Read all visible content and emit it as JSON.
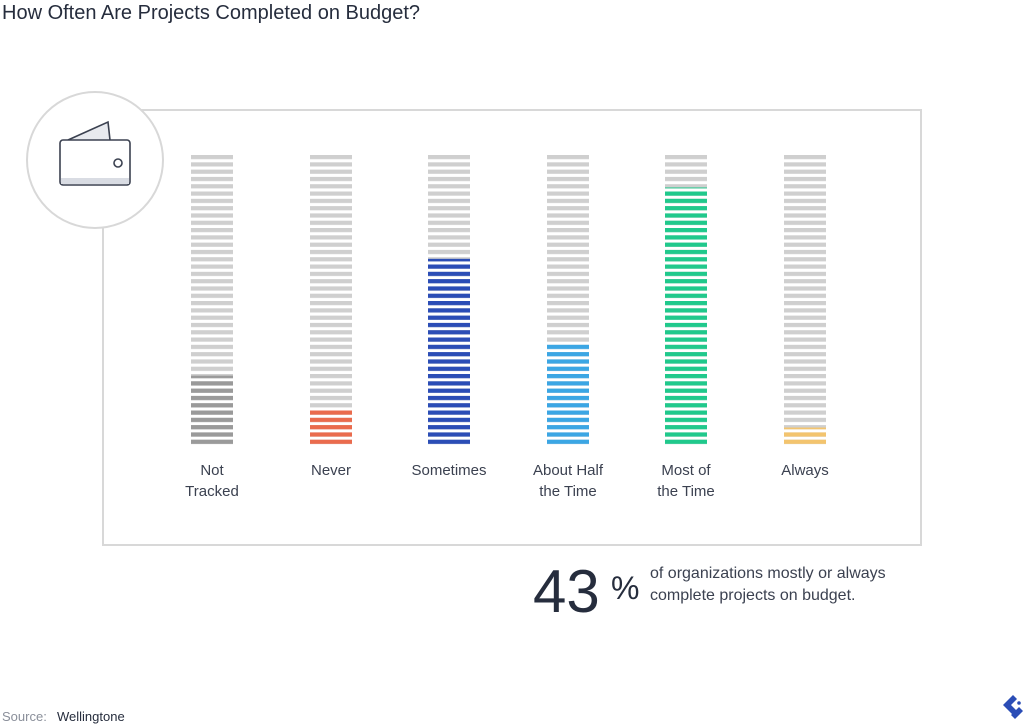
{
  "chart_data": {
    "type": "bar",
    "title": "How Often Are Projects Completed on Budget?",
    "categories": [
      "Not\nTracked",
      "Never",
      "Sometimes",
      "About Half\nthe Time",
      "Most of\nthe Time",
      "Always"
    ],
    "values": [
      11,
      6,
      29,
      16,
      40,
      3
    ],
    "colors": [
      "#9a9a9a",
      "#ea6b4d",
      "#2b4db6",
      "#3ba6e4",
      "#20c98c",
      "#f3c46e"
    ],
    "ylim": [
      0,
      45
    ],
    "stat": "43",
    "stat_unit": "%",
    "stat_text": "of organizations mostly or always\ncomplete projects on budget.",
    "source_label": "Source:",
    "source": "Wellingtone"
  }
}
